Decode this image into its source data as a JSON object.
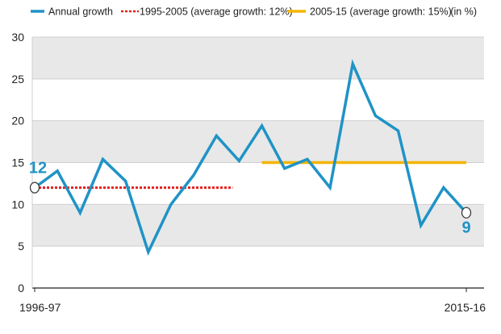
{
  "chart_data": {
    "type": "line",
    "title": "",
    "xlabel": "",
    "ylabel": "",
    "unit_note": "(in %)",
    "legend_position": "top",
    "grid": true,
    "ylim": [
      0,
      30
    ],
    "yticks": [
      0,
      5,
      10,
      15,
      20,
      25,
      30
    ],
    "x": [
      "1996-97",
      "1997-98",
      "1998-99",
      "1999-00",
      "2000-01",
      "2001-02",
      "2002-03",
      "2003-04",
      "2004-05",
      "2005-06",
      "2006-07",
      "2007-08",
      "2008-09",
      "2009-10",
      "2010-11",
      "2011-12",
      "2012-13",
      "2013-14",
      "2014-15",
      "2015-16"
    ],
    "x_tick_labels": [
      "1996-97",
      "2015-16"
    ],
    "series": [
      {
        "name": "Annual growth",
        "color": "#1f93c6",
        "values": [
          12,
          14,
          9,
          15.4,
          12.8,
          4.3,
          10,
          13.5,
          18.2,
          15.2,
          19.4,
          14.3,
          15.4,
          12,
          26.8,
          20.6,
          18.8,
          7.5,
          12,
          9
        ]
      },
      {
        "name": "1995-2005 (average growth: 12%)",
        "color": "#e3211f",
        "style": "dashed",
        "x_range": [
          "1996-97",
          "2005-06"
        ],
        "value": 12
      },
      {
        "name": "2005-15 (average growth: 15%)",
        "color": "#f5b400",
        "style": "solid",
        "x_range": [
          "2006-07",
          "2015-16"
        ],
        "value": 15
      }
    ],
    "annotations": [
      {
        "x": "1996-97",
        "text": "12"
      },
      {
        "x": "2015-16",
        "text": "9"
      }
    ]
  }
}
